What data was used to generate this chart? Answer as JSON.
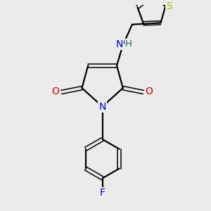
{
  "background_color": "#ebebeb",
  "bond_color": "#000000",
  "atom_colors": {
    "N_nh": "#0000cc",
    "H": "#007070",
    "O": "#cc0000",
    "N": "#0000cc",
    "F": "#0000cc",
    "S": "#b8b800",
    "C": "#000000"
  },
  "figsize": [
    3.0,
    3.0
  ],
  "dpi": 100
}
